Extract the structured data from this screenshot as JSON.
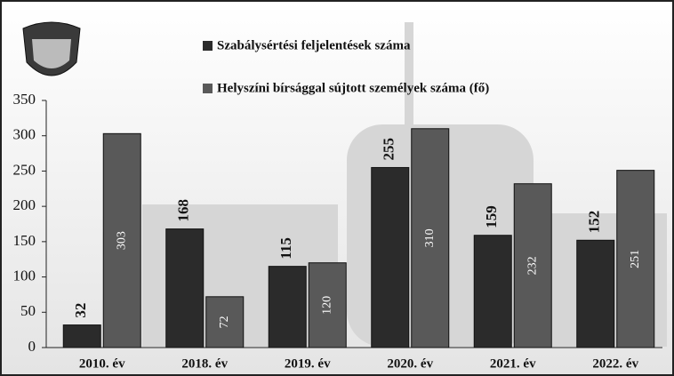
{
  "chart_data": {
    "type": "bar",
    "categories": [
      "2010. év",
      "2018. év",
      "2019. év",
      "2020. év",
      "2021. év",
      "2022. év"
    ],
    "series": [
      {
        "name": "Szabálysértési feljelentések száma",
        "color": "#2b2b2b",
        "values": [
          32,
          168,
          115,
          255,
          159,
          152
        ]
      },
      {
        "name": "Helyszíni bírsággal sújtott személyek száma (fő)",
        "color": "#595959",
        "values": [
          303,
          72,
          120,
          310,
          232,
          251
        ]
      }
    ],
    "ylim": [
      0,
      350
    ],
    "yticks": [
      0,
      50,
      100,
      150,
      200,
      250,
      300,
      350
    ]
  }
}
